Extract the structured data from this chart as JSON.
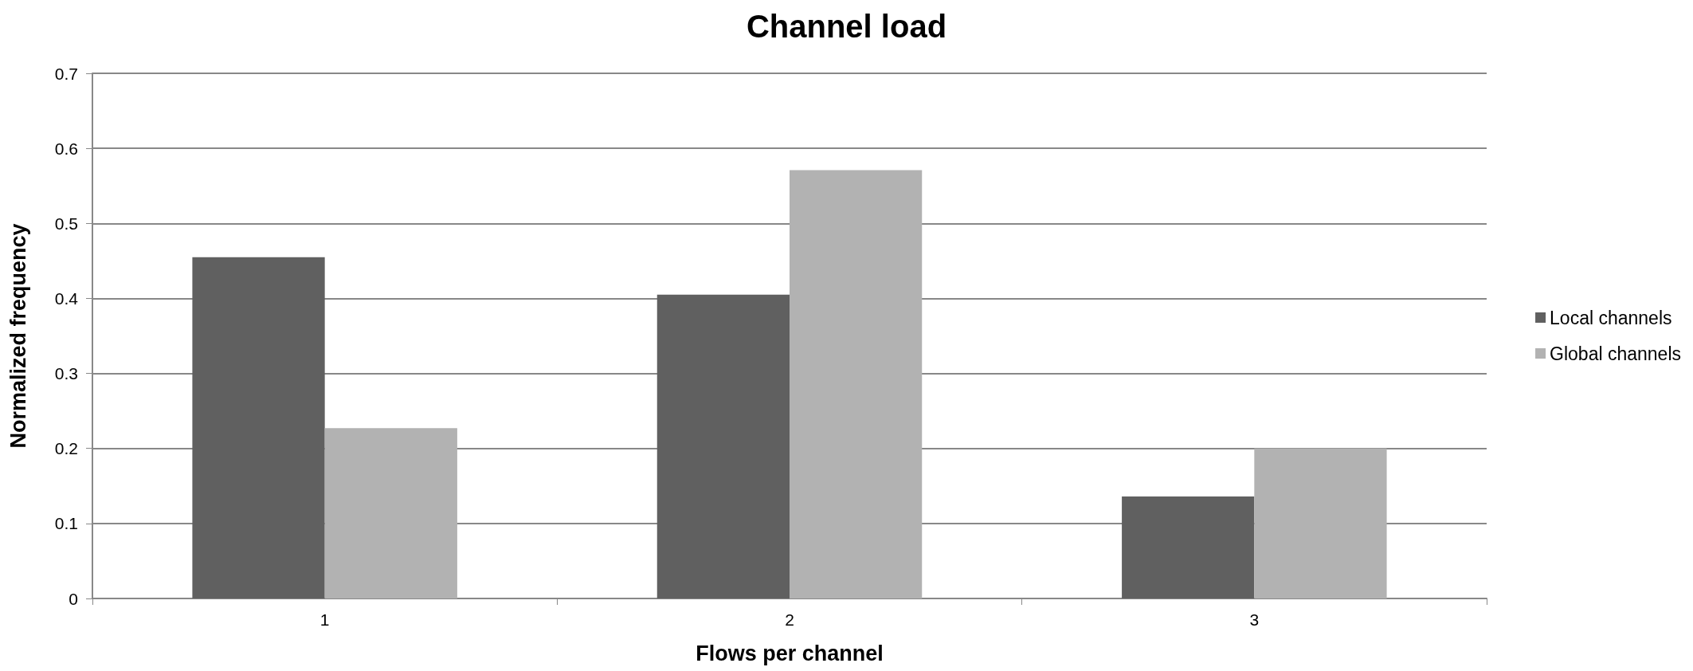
{
  "chart_data": {
    "type": "bar",
    "title": "Channel load",
    "xlabel": "Flows per channel",
    "ylabel": "Normalized frequency",
    "categories": [
      "1",
      "2",
      "3"
    ],
    "series": [
      {
        "name": "Local channels",
        "color": "#606060",
        "values": [
          0.455,
          0.405,
          0.136
        ]
      },
      {
        "name": "Global channels",
        "color": "#b2b2b2",
        "values": [
          0.227,
          0.571,
          0.2
        ]
      }
    ],
    "ylim": [
      0,
      0.7
    ],
    "yticks": [
      0,
      0.1,
      0.2,
      0.3,
      0.4,
      0.5,
      0.6,
      0.7
    ],
    "grid": "y",
    "legend": "right"
  }
}
